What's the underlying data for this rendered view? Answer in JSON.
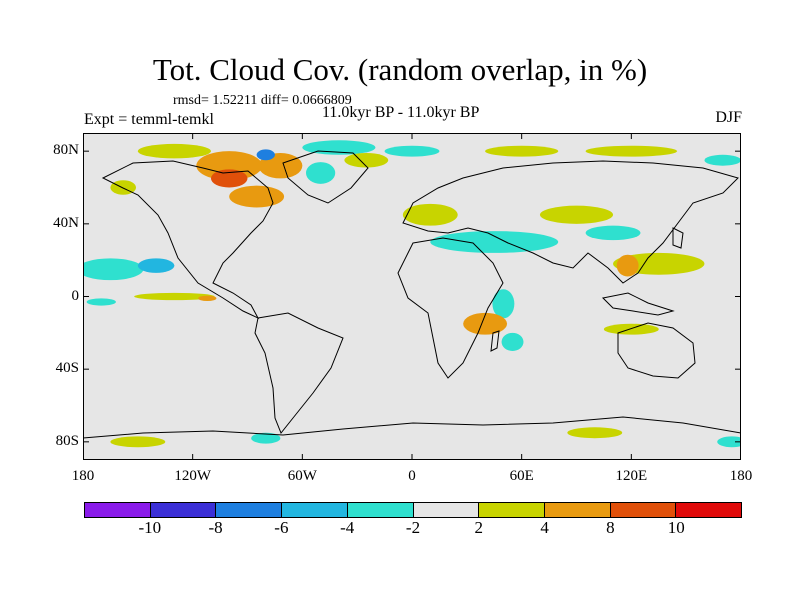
{
  "title": "Tot. Cloud Cov. (random overlap, in %)",
  "stats": "rmsd= 1.52211 diff= 0.0666809",
  "experiment": "Expt = temml-temkl",
  "period": "11.0kyr BP - 11.0kyr BP",
  "season": "DJF",
  "axes": {
    "y_ticks": [
      {
        "label": "80N",
        "value": 80
      },
      {
        "label": "40N",
        "value": 40
      },
      {
        "label": "0",
        "value": 0
      },
      {
        "label": "40S",
        "value": -40
      },
      {
        "label": "80S",
        "value": -80
      }
    ],
    "x_ticks": [
      {
        "label": "180",
        "value": -180
      },
      {
        "label": "120W",
        "value": -120
      },
      {
        "label": "60W",
        "value": -60
      },
      {
        "label": "0",
        "value": 0
      },
      {
        "label": "60E",
        "value": 60
      },
      {
        "label": "120E",
        "value": 120
      },
      {
        "label": "180",
        "value": 180
      }
    ],
    "lat_range": [
      -90,
      90
    ],
    "lon_range": [
      -180,
      180
    ]
  },
  "colorbar": {
    "levels": [
      "-10",
      "-8",
      "-6",
      "-4",
      "-2",
      "2",
      "4",
      "8",
      "10"
    ],
    "colors": [
      "#8a1bea",
      "#3b2fd6",
      "#1e7fe0",
      "#22b6e0",
      "#2fe0cf",
      "#e6e6e6",
      "#c8d400",
      "#e89a10",
      "#e0500a",
      "#e00a0a"
    ]
  },
  "colors": {
    "background_field": "#e6e6e6",
    "coast": "#000000"
  },
  "chart_data": {
    "type": "heatmap",
    "title": "Tot. Cloud Cov. (random overlap, in %)",
    "xlabel": "",
    "ylabel": "",
    "xlim": [
      -180,
      180
    ],
    "ylim": [
      -90,
      90
    ],
    "anomaly_regions": [
      {
        "lon": -165,
        "lat": 15,
        "rx": 18,
        "ry": 6,
        "value": -3
      },
      {
        "lon": -140,
        "lat": 17,
        "rx": 10,
        "ry": 4,
        "value": -5
      },
      {
        "lon": -130,
        "lat": 0,
        "rx": 22,
        "ry": 2,
        "value": 3
      },
      {
        "lon": -112,
        "lat": -1,
        "rx": 5,
        "ry": 1.5,
        "value": 6
      },
      {
        "lon": -170,
        "lat": -3,
        "rx": 8,
        "ry": 2,
        "value": -3
      },
      {
        "lon": -158,
        "lat": 60,
        "rx": 7,
        "ry": 4,
        "value": 3
      },
      {
        "lon": -100,
        "lat": 72,
        "rx": 18,
        "ry": 8,
        "value": 5
      },
      {
        "lon": -100,
        "lat": 65,
        "rx": 10,
        "ry": 5,
        "value": 9
      },
      {
        "lon": -72,
        "lat": 72,
        "rx": 12,
        "ry": 7,
        "value": 8
      },
      {
        "lon": -80,
        "lat": 78,
        "rx": 5,
        "ry": 3,
        "value": -7
      },
      {
        "lon": -50,
        "lat": 68,
        "rx": 8,
        "ry": 6,
        "value": -3
      },
      {
        "lon": -40,
        "lat": 82,
        "rx": 20,
        "ry": 4,
        "value": -3
      },
      {
        "lon": -130,
        "lat": 80,
        "rx": 20,
        "ry": 4,
        "value": 3
      },
      {
        "lon": -85,
        "lat": 55,
        "rx": 15,
        "ry": 6,
        "value": 5
      },
      {
        "lon": -25,
        "lat": 75,
        "rx": 12,
        "ry": 4,
        "value": 3
      },
      {
        "lon": 0,
        "lat": 80,
        "rx": 15,
        "ry": 3,
        "value": -3
      },
      {
        "lon": 60,
        "lat": 80,
        "rx": 20,
        "ry": 3,
        "value": 3
      },
      {
        "lon": 120,
        "lat": 80,
        "rx": 25,
        "ry": 3,
        "value": 3
      },
      {
        "lon": 170,
        "lat": 75,
        "rx": 10,
        "ry": 3,
        "value": -3
      },
      {
        "lon": 10,
        "lat": 45,
        "rx": 15,
        "ry": 6,
        "value": 3
      },
      {
        "lon": 45,
        "lat": 30,
        "rx": 35,
        "ry": 6,
        "value": -3
      },
      {
        "lon": 90,
        "lat": 45,
        "rx": 20,
        "ry": 5,
        "value": 3
      },
      {
        "lon": 110,
        "lat": 35,
        "rx": 15,
        "ry": 4,
        "value": -3
      },
      {
        "lon": 135,
        "lat": 18,
        "rx": 25,
        "ry": 6,
        "value": 3
      },
      {
        "lon": 118,
        "lat": 17,
        "rx": 6,
        "ry": 6,
        "value": 6
      },
      {
        "lon": 50,
        "lat": -4,
        "rx": 6,
        "ry": 8,
        "value": -3
      },
      {
        "lon": 40,
        "lat": -15,
        "rx": 12,
        "ry": 6,
        "value": 6
      },
      {
        "lon": 55,
        "lat": -25,
        "rx": 6,
        "ry": 5,
        "value": -3
      },
      {
        "lon": 120,
        "lat": -18,
        "rx": 15,
        "ry": 3,
        "value": 3
      },
      {
        "lon": 100,
        "lat": -75,
        "rx": 15,
        "ry": 3,
        "value": 3
      },
      {
        "lon": -150,
        "lat": -80,
        "rx": 15,
        "ry": 3,
        "value": 3
      },
      {
        "lon": -80,
        "lat": -78,
        "rx": 8,
        "ry": 3,
        "value": -3
      },
      {
        "lon": 175,
        "lat": -80,
        "rx": 8,
        "ry": 3,
        "value": -3
      }
    ]
  }
}
